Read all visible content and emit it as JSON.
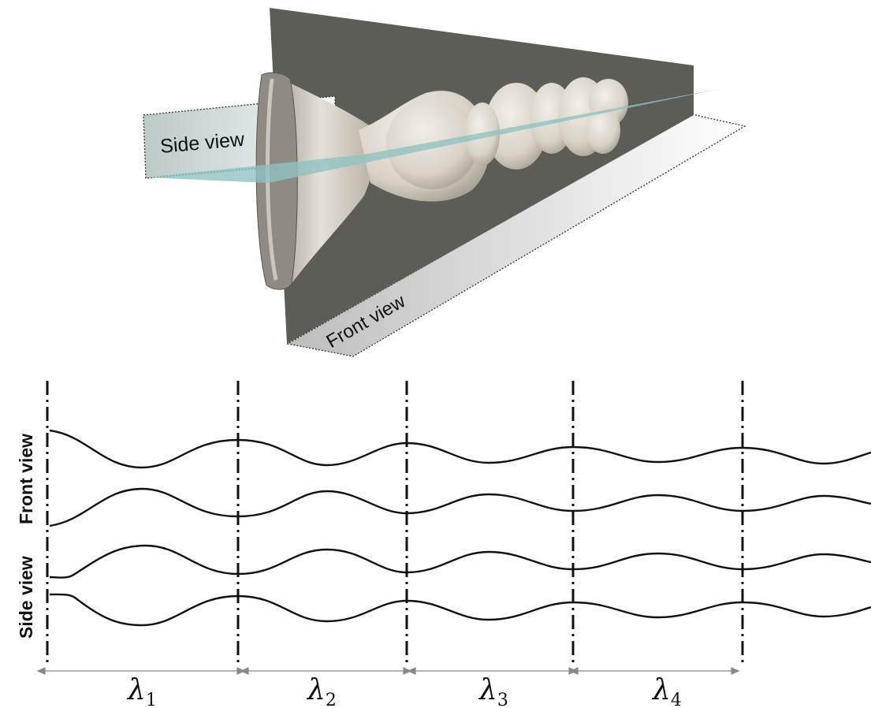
{
  "labels": {
    "side_view_3d": "Side view",
    "front_view_3d": "Front view",
    "front_view_profile": "Front view",
    "side_view_profile": "Side view"
  },
  "wavelengths": [
    {
      "symbol": "λ",
      "index": "1"
    },
    {
      "symbol": "λ",
      "index": "2"
    },
    {
      "symbol": "λ",
      "index": "3"
    },
    {
      "symbol": "λ",
      "index": "4"
    }
  ],
  "colors": {
    "front_plane": "#5d5d58",
    "side_plane": "#8fc1c1",
    "jet_surface": "#ddd8cf",
    "curves": "#111111"
  }
}
